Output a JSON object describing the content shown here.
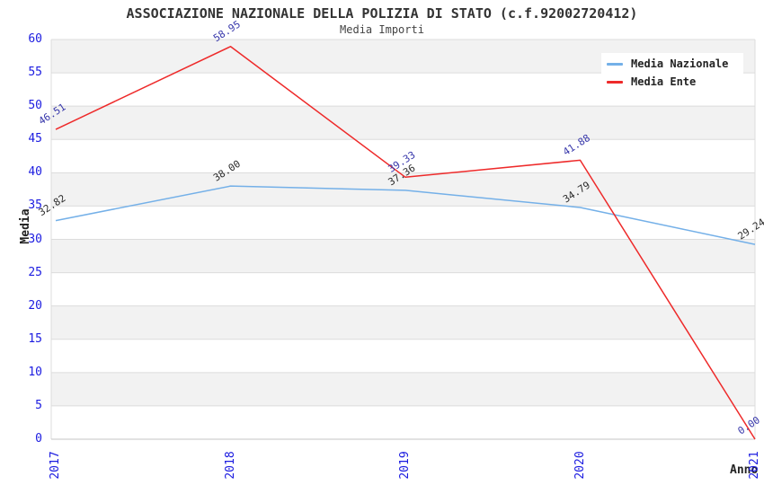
{
  "header": {
    "title": "ASSOCIAZIONE NAZIONALE DELLA POLIZIA DI STATO (c.f.92002720412)",
    "subtitle": "Media Importi"
  },
  "axes": {
    "ylabel": "Media",
    "xlabel": "Anno",
    "y_ticks": [
      0,
      5,
      10,
      15,
      20,
      25,
      30,
      35,
      40,
      45,
      50,
      55,
      60
    ],
    "x_ticks": [
      "2017",
      "2018",
      "2019",
      "2020",
      "2021"
    ]
  },
  "chart_data": {
    "type": "line",
    "title": "ASSOCIAZIONE NAZIONALE DELLA POLIZIA DI STATO (c.f.92002720412)",
    "subtitle": "Media Importi",
    "categories": [
      "2017",
      "2018",
      "2019",
      "2020",
      "2021"
    ],
    "series": [
      {
        "name": "Media Nazionale",
        "color": "#74b0e8",
        "label_color": "#2b2b2b",
        "values": [
          32.82,
          38.0,
          37.36,
          34.79,
          29.24
        ]
      },
      {
        "name": "Media Ente",
        "color": "#ee2a2a",
        "label_color": "#3636aa",
        "values": [
          46.51,
          58.95,
          39.33,
          41.88,
          0.0
        ]
      }
    ],
    "xlabel": "Anno",
    "ylabel": "Media",
    "ylim": [
      0,
      60
    ],
    "ytick_step": 5,
    "grid": true,
    "alternating_bands": true,
    "legend_position": "top-right",
    "data_labels": true,
    "colors": {
      "band": "#f2f2f2",
      "grid": "#dcdcdc",
      "axis_line": "#c6c6c6",
      "tick_text": "#1b1be0",
      "title_text": "#333333"
    }
  }
}
